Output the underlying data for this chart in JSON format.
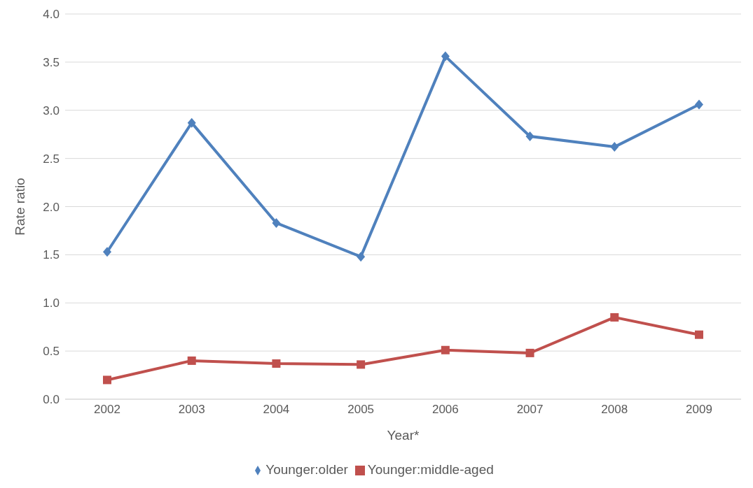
{
  "chart_data": {
    "type": "line",
    "xlabel": "Year*",
    "ylabel": "Rate ratio",
    "categories": [
      "2002",
      "2003",
      "2004",
      "2005",
      "2006",
      "2007",
      "2008",
      "2009"
    ],
    "series": [
      {
        "name": "Younger:older",
        "color": "#4f81bd",
        "marker": "diamond",
        "values": [
          1.53,
          2.87,
          1.83,
          1.48,
          3.56,
          2.73,
          2.62,
          3.06
        ]
      },
      {
        "name": "Younger:middle-aged",
        "color": "#c0504d",
        "marker": "square",
        "values": [
          0.2,
          0.4,
          0.37,
          0.36,
          0.51,
          0.48,
          0.85,
          0.67
        ]
      }
    ],
    "ylim": [
      0,
      4
    ],
    "yticks": [
      {
        "value": 0,
        "label": "0.0"
      },
      {
        "value": 0.5,
        "label": "0.5"
      },
      {
        "value": 1,
        "label": "1.0"
      },
      {
        "value": 1.5,
        "label": "1.5"
      },
      {
        "value": 2,
        "label": "2.0"
      },
      {
        "value": 2.5,
        "label": "2.5"
      },
      {
        "value": 3,
        "label": "3.0"
      },
      {
        "value": 3.5,
        "label": "3.5"
      },
      {
        "value": 4,
        "label": "4.0"
      }
    ],
    "grid": "y",
    "legend": "bottom",
    "line_style": "solid"
  }
}
